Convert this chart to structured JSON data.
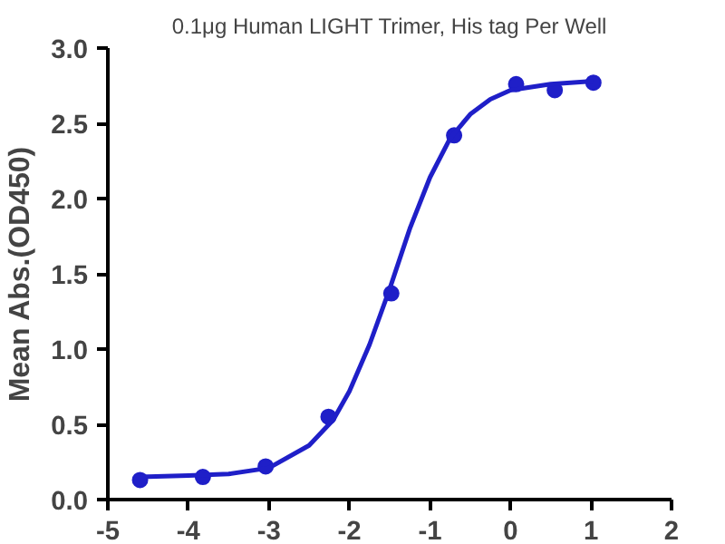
{
  "chart_data": {
    "type": "scatter",
    "title": "0.1μg Human LIGHT Trimer, His tag Per Well",
    "ylabel": "Mean Abs.(OD450)",
    "xlim": [
      -5,
      2
    ],
    "ylim": [
      0,
      3
    ],
    "xticks": [
      {
        "value": -5,
        "label": "-5"
      },
      {
        "value": -4,
        "label": "-4"
      },
      {
        "value": -3,
        "label": "-3"
      },
      {
        "value": -2,
        "label": "-2"
      },
      {
        "value": -1,
        "label": "-1"
      },
      0,
      1,
      2
    ],
    "yticks": [
      {
        "value": 0,
        "label": "0.0"
      },
      {
        "value": 0.5,
        "label": "0.5"
      },
      {
        "value": 1,
        "label": "1.0"
      },
      {
        "value": 1.5,
        "label": "1.5"
      },
      {
        "value": 2,
        "label": "2.0"
      },
      {
        "value": 2.5,
        "label": "2.5"
      },
      {
        "value": 3,
        "label": "3.0"
      }
    ],
    "grid": false,
    "series": [
      {
        "marker": "circle",
        "color": "#1f1fc8",
        "x": [
          -4.6,
          -3.82,
          -3.04,
          -2.26,
          -1.48,
          -0.7,
          0.07,
          0.55,
          1.03
        ],
        "values": [
          0.13,
          0.15,
          0.22,
          0.55,
          1.37,
          2.42,
          2.76,
          2.72,
          2.77
        ]
      },
      {
        "type": "line",
        "line_style": "solid",
        "color": "#1f1fc8",
        "x": [
          -4.6,
          -4,
          -3.5,
          -3,
          -2.5,
          -2.2,
          -2,
          -1.75,
          -1.5,
          -1.25,
          -1,
          -0.75,
          -0.5,
          -0.25,
          0,
          0.5,
          1.03
        ],
        "values": [
          0.15,
          0.16,
          0.17,
          0.21,
          0.36,
          0.53,
          0.72,
          1.03,
          1.4,
          1.8,
          2.14,
          2.4,
          2.56,
          2.66,
          2.72,
          2.76,
          2.78
        ]
      }
    ]
  }
}
